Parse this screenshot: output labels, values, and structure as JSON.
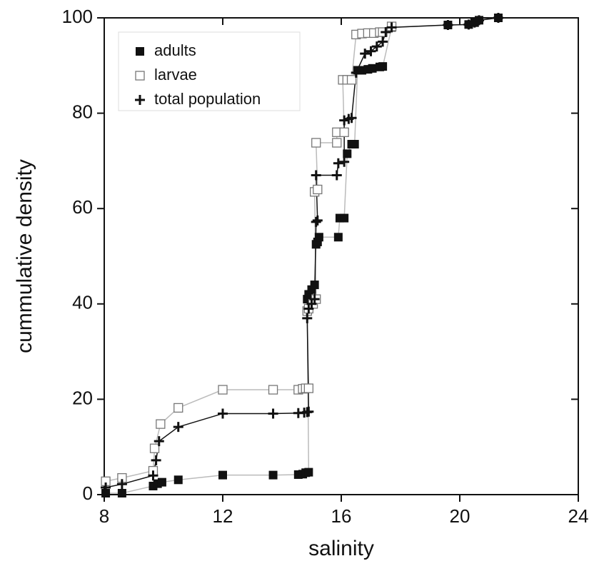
{
  "chart_data": {
    "type": "scatter",
    "x_label": "salinity",
    "y_label": "cummulative density",
    "xlim": [
      8,
      24
    ],
    "xticks": [
      8,
      12,
      16,
      20,
      24
    ],
    "ylim": [
      0,
      100
    ],
    "yticks": [
      0,
      20,
      40,
      60,
      80,
      100
    ],
    "legend": "upper left",
    "series": [
      {
        "name": "adults",
        "color": "#111111",
        "line_color": "#bbbbbb",
        "marker": "filled-square",
        "x": [
          8.05,
          8.6,
          9.65,
          9.8,
          9.95,
          10.5,
          12,
          13.7,
          14.55,
          14.7,
          14.8,
          14.9,
          14.85,
          14.9,
          15.0,
          15.1,
          15.15,
          15.2,
          15.25,
          15.9,
          15.95,
          16.1,
          16.2,
          16.35,
          16.45,
          16.55,
          16.7,
          16.9,
          17.05,
          17.3,
          17.4,
          17.7,
          19.6,
          20.3,
          20.5,
          20.65,
          21.3
        ],
        "values": [
          0.3,
          0.3,
          1.8,
          2.3,
          2.6,
          3.1,
          4.1,
          4.1,
          4.2,
          4.3,
          4.6,
          4.7,
          41,
          42,
          43,
          44,
          52.5,
          53,
          54,
          54,
          58,
          58,
          71.5,
          73.5,
          73.5,
          89,
          89,
          89.2,
          89.4,
          89.7,
          89.8,
          98,
          98.5,
          98.6,
          99,
          99.5,
          100
        ]
      },
      {
        "name": "larvae",
        "color": "#777777",
        "line_color": "#bbbbbb",
        "marker": "open-square",
        "x": [
          8.05,
          8.6,
          9.65,
          9.7,
          9.9,
          10.5,
          12,
          13.7,
          14.55,
          14.7,
          14.8,
          14.9,
          14.85,
          14.9,
          15.05,
          15.15,
          15.1,
          15.2,
          15.15,
          15.85,
          15.85,
          16.1,
          16.05,
          16.2,
          16.35,
          16.5,
          16.7,
          16.9,
          17.1,
          17.3,
          17.4,
          17.7
        ],
        "values": [
          2.8,
          3.5,
          5,
          9.7,
          14.8,
          18.2,
          22,
          22,
          22,
          22.2,
          22.3,
          22.3,
          38.5,
          39,
          40,
          41,
          63.5,
          64,
          73.8,
          73.8,
          76,
          76,
          87,
          87,
          87,
          96.5,
          96.7,
          96.8,
          96.8,
          97,
          97,
          98.2
        ]
      },
      {
        "name": "total population",
        "color": "#111111",
        "line_color": "#111111",
        "marker": "plus",
        "x": [
          8.05,
          8.6,
          9.65,
          9.75,
          9.85,
          10.5,
          12,
          13.7,
          14.55,
          14.75,
          14.85,
          14.9,
          14.85,
          14.9,
          15.0,
          15.1,
          15.15,
          15.2,
          15.15,
          15.85,
          15.9,
          16.1,
          16.1,
          16.25,
          16.35,
          16.5,
          16.8,
          17.0,
          17.2,
          17.4,
          17.5,
          17.7,
          19.6,
          20.3,
          20.5,
          20.65,
          21.3
        ],
        "values": [
          1.5,
          2.2,
          4,
          7.2,
          11.2,
          14.2,
          17,
          17,
          17.1,
          17.2,
          17.3,
          17.4,
          37,
          39,
          40,
          41,
          57.2,
          57.5,
          67,
          67,
          69.5,
          69.8,
          78.5,
          78.8,
          79,
          88.5,
          92.5,
          93,
          94,
          95,
          97,
          98,
          98.5,
          98.6,
          99,
          99.5,
          100
        ]
      }
    ]
  }
}
